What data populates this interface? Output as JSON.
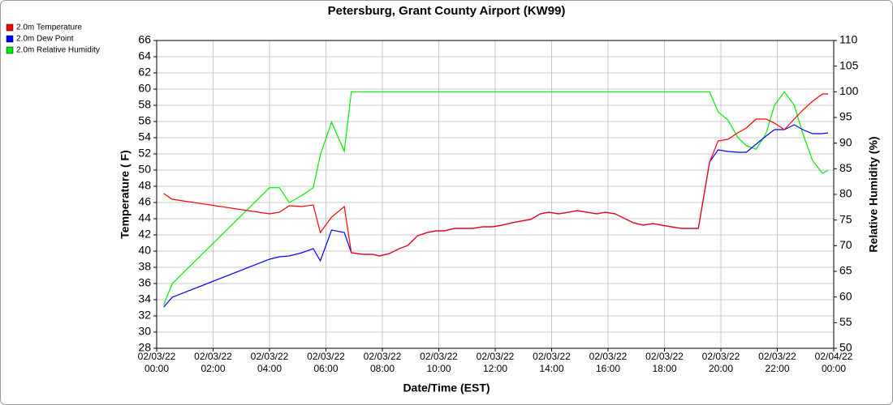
{
  "chart_data": {
    "type": "line",
    "title": "Petersburg, Grant County Airport (KW99)",
    "x_label": "Date/Time (EST)",
    "y_label": "Temperature ( F)",
    "y2_label": "Relative Humidity (%)",
    "x": [
      0.25,
      0.55,
      4.0,
      4.35,
      4.7,
      5.15,
      5.55,
      5.8,
      6.2,
      6.65,
      6.9,
      7.3,
      7.65,
      7.9,
      8.25,
      8.6,
      8.9,
      9.25,
      9.6,
      9.9,
      10.2,
      10.55,
      11.2,
      11.55,
      11.9,
      12.25,
      12.6,
      12.9,
      13.25,
      13.6,
      13.9,
      14.25,
      14.6,
      14.9,
      15.25,
      15.6,
      15.9,
      16.25,
      16.6,
      16.9,
      17.25,
      17.6,
      17.9,
      18.25,
      18.6,
      19.2,
      19.6,
      19.9,
      20.25,
      20.6,
      20.9,
      21.25,
      21.6,
      21.9,
      22.25,
      22.6,
      22.9,
      23.25,
      23.6,
      23.8
    ],
    "series": [
      {
        "name": "2.0m Temperature",
        "color": "#ff0000",
        "values": [
          47.1,
          46.4,
          44.6,
          44.8,
          45.6,
          45.5,
          45.7,
          42.3,
          44.2,
          45.5,
          39.8,
          39.6,
          39.6,
          39.4,
          39.7,
          40.3,
          40.7,
          41.9,
          42.3,
          42.5,
          42.5,
          42.8,
          42.8,
          43.0,
          43.0,
          43.2,
          43.5,
          43.7,
          43.9,
          44.6,
          44.8,
          44.6,
          44.8,
          45.0,
          44.8,
          44.6,
          44.8,
          44.6,
          44.0,
          43.5,
          43.2,
          43.4,
          43.2,
          43.0,
          42.8,
          42.8,
          51.0,
          53.6,
          53.8,
          54.6,
          55.2,
          56.3,
          56.3,
          55.8,
          55.0,
          56.3,
          57.4,
          58.5,
          59.4,
          59.4
        ]
      },
      {
        "name": "2.0m Dew Point",
        "color": "#0000ff",
        "values": [
          33.1,
          34.3,
          39.0,
          39.3,
          39.4,
          39.8,
          40.3,
          38.8,
          42.6,
          42.3,
          39.8,
          39.6,
          39.6,
          39.4,
          39.7,
          40.3,
          40.7,
          41.9,
          42.3,
          42.5,
          42.5,
          42.8,
          42.8,
          43.0,
          43.0,
          43.2,
          43.5,
          43.7,
          43.9,
          44.6,
          44.8,
          44.6,
          44.8,
          45.0,
          44.8,
          44.6,
          44.8,
          44.6,
          44.0,
          43.5,
          43.2,
          43.4,
          43.2,
          43.0,
          42.8,
          42.8,
          51.0,
          52.5,
          52.3,
          52.2,
          52.2,
          53.2,
          54.2,
          55.0,
          55.0,
          55.6,
          55.0,
          54.5,
          54.5,
          54.6
        ]
      },
      {
        "name": "2.0m Relative Humidity",
        "color": "#00ee00",
        "axis": "y2",
        "values": [
          58.5,
          62.6,
          81.3,
          81.3,
          78.4,
          79.8,
          81.3,
          87.7,
          94.1,
          88.4,
          100,
          100,
          100,
          100,
          100,
          100,
          100,
          100,
          100,
          100,
          100,
          100,
          100,
          100,
          100,
          100,
          100,
          100,
          100,
          100,
          100,
          100,
          100,
          100,
          100,
          100,
          100,
          100,
          100,
          100,
          100,
          100,
          100,
          100,
          100,
          100,
          100,
          96.1,
          94.5,
          91.1,
          89.5,
          88.8,
          91.9,
          97.4,
          100,
          97.4,
          91.9,
          86.6,
          84.1,
          84.7
        ]
      }
    ],
    "xlim": [
      0,
      24
    ],
    "xticks": [
      {
        "value": 0,
        "label": "02/03/22 00:00"
      },
      {
        "value": 2,
        "label": "02/03/22 02:00"
      },
      {
        "value": 4,
        "label": "02/03/22 04:00"
      },
      {
        "value": 6,
        "label": "02/03/22 06:00"
      },
      {
        "value": 8,
        "label": "02/03/22 08:00"
      },
      {
        "value": 10,
        "label": "02/03/22 10:00"
      },
      {
        "value": 12,
        "label": "02/03/22 12:00"
      },
      {
        "value": 14,
        "label": "02/03/22 14:00"
      },
      {
        "value": 16,
        "label": "02/03/22 16:00"
      },
      {
        "value": 18,
        "label": "02/03/22 18:00"
      },
      {
        "value": 20,
        "label": "02/03/22 20:00"
      },
      {
        "value": 22,
        "label": "02/03/22 22:00"
      },
      {
        "value": 24,
        "label": "02/04/22 00:00"
      }
    ],
    "ylim": [
      28,
      66
    ],
    "yticks": [
      28,
      30,
      32,
      34,
      36,
      38,
      40,
      42,
      44,
      46,
      48,
      50,
      52,
      54,
      56,
      58,
      60,
      62,
      64,
      66
    ],
    "y2lim": [
      50,
      110
    ],
    "y2ticks": [
      50,
      55,
      60,
      65,
      70,
      75,
      80,
      85,
      90,
      95,
      100,
      105,
      110
    ],
    "grid": true,
    "legend": "top-left"
  }
}
